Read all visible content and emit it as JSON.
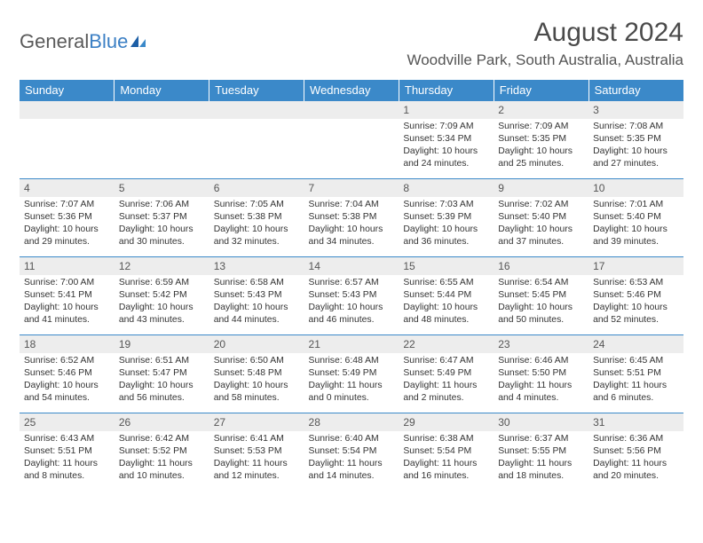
{
  "logo": {
    "text1": "General",
    "text2": "Blue"
  },
  "title": "August 2024",
  "location": "Woodville Park, South Australia, Australia",
  "colors": {
    "header_bg": "#3b89c9",
    "header_text": "#ffffff",
    "daynum_bg": "#ededed",
    "row_border": "#3b89c9",
    "body_text": "#333333",
    "title_text": "#4a4a4a",
    "logo_gray": "#5a5a5a",
    "logo_blue": "#3b7fc4"
  },
  "weekdays": [
    "Sunday",
    "Monday",
    "Tuesday",
    "Wednesday",
    "Thursday",
    "Friday",
    "Saturday"
  ],
  "weeks": [
    [
      null,
      null,
      null,
      null,
      {
        "n": "1",
        "sr": "7:09 AM",
        "ss": "5:34 PM",
        "dl": "10 hours and 24 minutes."
      },
      {
        "n": "2",
        "sr": "7:09 AM",
        "ss": "5:35 PM",
        "dl": "10 hours and 25 minutes."
      },
      {
        "n": "3",
        "sr": "7:08 AM",
        "ss": "5:35 PM",
        "dl": "10 hours and 27 minutes."
      }
    ],
    [
      {
        "n": "4",
        "sr": "7:07 AM",
        "ss": "5:36 PM",
        "dl": "10 hours and 29 minutes."
      },
      {
        "n": "5",
        "sr": "7:06 AM",
        "ss": "5:37 PM",
        "dl": "10 hours and 30 minutes."
      },
      {
        "n": "6",
        "sr": "7:05 AM",
        "ss": "5:38 PM",
        "dl": "10 hours and 32 minutes."
      },
      {
        "n": "7",
        "sr": "7:04 AM",
        "ss": "5:38 PM",
        "dl": "10 hours and 34 minutes."
      },
      {
        "n": "8",
        "sr": "7:03 AM",
        "ss": "5:39 PM",
        "dl": "10 hours and 36 minutes."
      },
      {
        "n": "9",
        "sr": "7:02 AM",
        "ss": "5:40 PM",
        "dl": "10 hours and 37 minutes."
      },
      {
        "n": "10",
        "sr": "7:01 AM",
        "ss": "5:40 PM",
        "dl": "10 hours and 39 minutes."
      }
    ],
    [
      {
        "n": "11",
        "sr": "7:00 AM",
        "ss": "5:41 PM",
        "dl": "10 hours and 41 minutes."
      },
      {
        "n": "12",
        "sr": "6:59 AM",
        "ss": "5:42 PM",
        "dl": "10 hours and 43 minutes."
      },
      {
        "n": "13",
        "sr": "6:58 AM",
        "ss": "5:43 PM",
        "dl": "10 hours and 44 minutes."
      },
      {
        "n": "14",
        "sr": "6:57 AM",
        "ss": "5:43 PM",
        "dl": "10 hours and 46 minutes."
      },
      {
        "n": "15",
        "sr": "6:55 AM",
        "ss": "5:44 PM",
        "dl": "10 hours and 48 minutes."
      },
      {
        "n": "16",
        "sr": "6:54 AM",
        "ss": "5:45 PM",
        "dl": "10 hours and 50 minutes."
      },
      {
        "n": "17",
        "sr": "6:53 AM",
        "ss": "5:46 PM",
        "dl": "10 hours and 52 minutes."
      }
    ],
    [
      {
        "n": "18",
        "sr": "6:52 AM",
        "ss": "5:46 PM",
        "dl": "10 hours and 54 minutes."
      },
      {
        "n": "19",
        "sr": "6:51 AM",
        "ss": "5:47 PM",
        "dl": "10 hours and 56 minutes."
      },
      {
        "n": "20",
        "sr": "6:50 AM",
        "ss": "5:48 PM",
        "dl": "10 hours and 58 minutes."
      },
      {
        "n": "21",
        "sr": "6:48 AM",
        "ss": "5:49 PM",
        "dl": "11 hours and 0 minutes."
      },
      {
        "n": "22",
        "sr": "6:47 AM",
        "ss": "5:49 PM",
        "dl": "11 hours and 2 minutes."
      },
      {
        "n": "23",
        "sr": "6:46 AM",
        "ss": "5:50 PM",
        "dl": "11 hours and 4 minutes."
      },
      {
        "n": "24",
        "sr": "6:45 AM",
        "ss": "5:51 PM",
        "dl": "11 hours and 6 minutes."
      }
    ],
    [
      {
        "n": "25",
        "sr": "6:43 AM",
        "ss": "5:51 PM",
        "dl": "11 hours and 8 minutes."
      },
      {
        "n": "26",
        "sr": "6:42 AM",
        "ss": "5:52 PM",
        "dl": "11 hours and 10 minutes."
      },
      {
        "n": "27",
        "sr": "6:41 AM",
        "ss": "5:53 PM",
        "dl": "11 hours and 12 minutes."
      },
      {
        "n": "28",
        "sr": "6:40 AM",
        "ss": "5:54 PM",
        "dl": "11 hours and 14 minutes."
      },
      {
        "n": "29",
        "sr": "6:38 AM",
        "ss": "5:54 PM",
        "dl": "11 hours and 16 minutes."
      },
      {
        "n": "30",
        "sr": "6:37 AM",
        "ss": "5:55 PM",
        "dl": "11 hours and 18 minutes."
      },
      {
        "n": "31",
        "sr": "6:36 AM",
        "ss": "5:56 PM",
        "dl": "11 hours and 20 minutes."
      }
    ]
  ],
  "labels": {
    "sunrise": "Sunrise:",
    "sunset": "Sunset:",
    "daylight": "Daylight:"
  }
}
